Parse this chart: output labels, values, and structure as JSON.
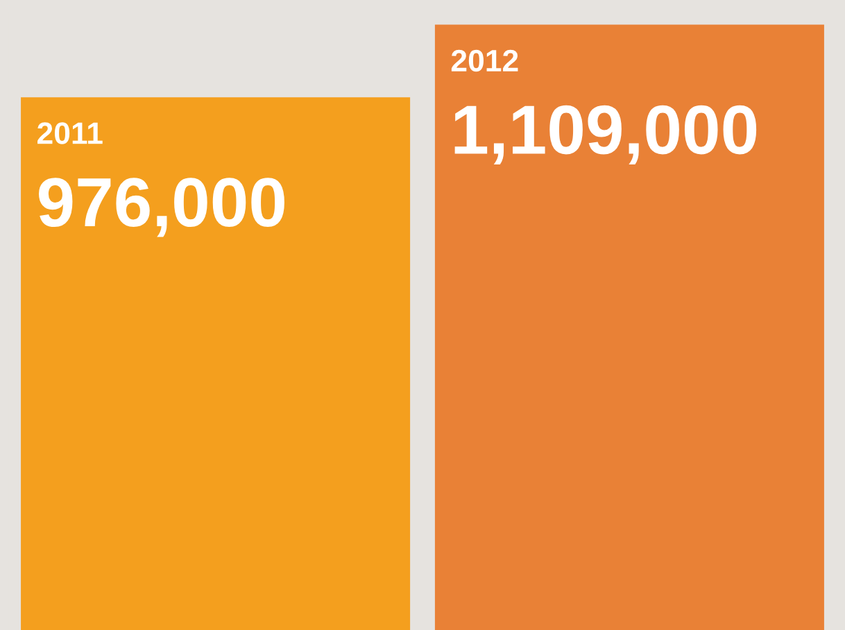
{
  "chart_data": {
    "type": "bar",
    "categories": [
      "2011",
      "2012"
    ],
    "values": [
      976000,
      1109000
    ],
    "colors": [
      "#f49f1e",
      "#e98136"
    ],
    "value_labels": [
      "976,000",
      "1,109,000"
    ]
  }
}
